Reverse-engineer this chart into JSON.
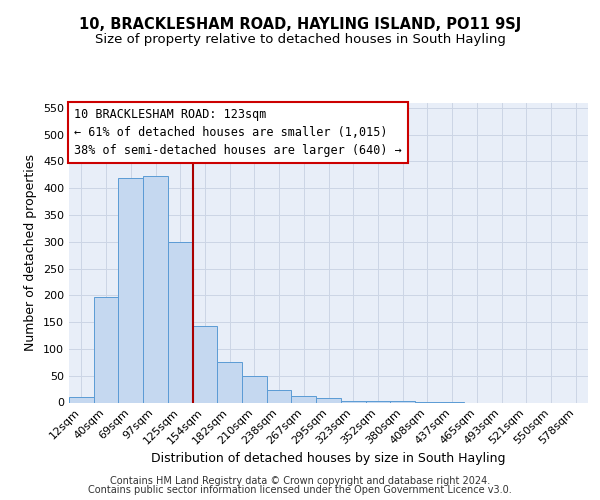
{
  "title1": "10, BRACKLESHAM ROAD, HAYLING ISLAND, PO11 9SJ",
  "title2": "Size of property relative to detached houses in South Hayling",
  "xlabel": "Distribution of detached houses by size in South Hayling",
  "ylabel": "Number of detached properties",
  "footnote1": "Contains HM Land Registry data © Crown copyright and database right 2024.",
  "footnote2": "Contains public sector information licensed under the Open Government Licence v3.0.",
  "bar_labels": [
    "12sqm",
    "40sqm",
    "69sqm",
    "97sqm",
    "125sqm",
    "154sqm",
    "182sqm",
    "210sqm",
    "238sqm",
    "267sqm",
    "295sqm",
    "323sqm",
    "352sqm",
    "380sqm",
    "408sqm",
    "437sqm",
    "465sqm",
    "493sqm",
    "521sqm",
    "550sqm",
    "578sqm"
  ],
  "bar_values": [
    10,
    197,
    420,
    422,
    300,
    143,
    76,
    49,
    23,
    12,
    9,
    3,
    2,
    2,
    1,
    1,
    0,
    0,
    0,
    0,
    0
  ],
  "bar_color": "#c5d8f0",
  "bar_edge_color": "#5b9bd5",
  "vline_index": 4,
  "vline_color": "#aa0000",
  "annotation_text": "10 BRACKLESHAM ROAD: 123sqm\n← 61% of detached houses are smaller (1,015)\n38% of semi-detached houses are larger (640) →",
  "annotation_box_facecolor": "white",
  "annotation_box_edgecolor": "#cc0000",
  "ylim_max": 560,
  "yticks": [
    0,
    50,
    100,
    150,
    200,
    250,
    300,
    350,
    400,
    450,
    500,
    550
  ],
  "grid_color": "#ccd5e5",
  "bg_color": "#e8eef8",
  "title1_fontsize": 10.5,
  "title2_fontsize": 9.5,
  "xlabel_fontsize": 9,
  "ylabel_fontsize": 9,
  "tick_fontsize": 8,
  "annot_fontsize": 8.5,
  "footnote_fontsize": 7
}
